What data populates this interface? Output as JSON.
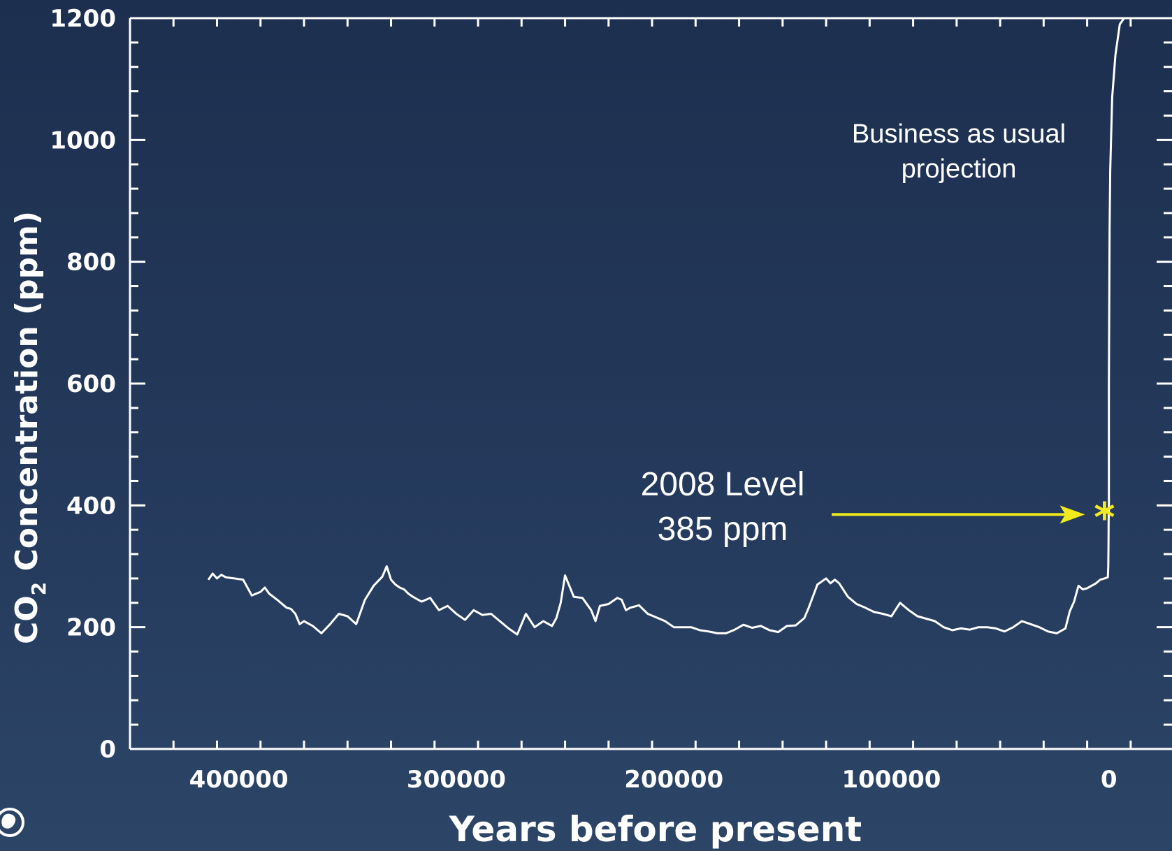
{
  "chart_data": {
    "type": "line",
    "xlabel": "Years before present",
    "ylabel": "CO",
    "ylabel_subscript": "2",
    "ylabel_suffix": " Concentration (ppm)",
    "xlim": [
      450000,
      -29000
    ],
    "ylim": [
      0,
      1200
    ],
    "x_ticks": [
      400000,
      300000,
      200000,
      100000,
      0
    ],
    "x_tick_labels": [
      "400000",
      "300000",
      "200000",
      "100000",
      "0"
    ],
    "y_ticks": [
      0,
      200,
      400,
      600,
      800,
      1000,
      1200
    ],
    "y_tick_labels": [
      "0",
      "200",
      "400",
      "600",
      "800",
      "1000",
      "1200"
    ],
    "series": [
      {
        "x": [
          414000,
          412000,
          410000,
          408000,
          406000,
          404000,
          402000,
          398000,
          394000,
          390000,
          388000,
          386000,
          382000,
          378000,
          376000,
          374000,
          372000,
          370000,
          366000,
          362000,
          358000,
          354000,
          350000,
          346000,
          342000,
          338000,
          334000,
          332000,
          330000,
          328000,
          326000,
          324000,
          322000,
          320000,
          316000,
          312000,
          308000,
          304000,
          300000,
          296000,
          292000,
          288000,
          284000,
          280000,
          276000,
          272000,
          268000,
          264000,
          260000,
          256000,
          254000,
          252000,
          250000,
          246000,
          242000,
          238000,
          236000,
          234000,
          230000,
          226000,
          224000,
          222000,
          220000,
          216000,
          212000,
          208000,
          204000,
          200000,
          196000,
          192000,
          188000,
          184000,
          180000,
          176000,
          172000,
          168000,
          164000,
          160000,
          156000,
          152000,
          148000,
          144000,
          140000,
          138000,
          134000,
          130000,
          128000,
          126000,
          124000,
          120000,
          116000,
          112000,
          108000,
          104000,
          100000,
          96000,
          92000,
          88000,
          84000,
          80000,
          76000,
          72000,
          68000,
          64000,
          60000,
          56000,
          52000,
          48000,
          44000,
          40000,
          36000,
          32000,
          28000,
          24000,
          20000,
          18000,
          16000,
          14000,
          12000,
          10000,
          8000,
          6000,
          4000,
          2000,
          500,
          300,
          200,
          100,
          0
        ],
        "values": [
          278,
          288,
          280,
          286,
          282,
          281,
          280,
          278,
          252,
          258,
          265,
          255,
          244,
          232,
          230,
          222,
          205,
          210,
          202,
          190,
          205,
          222,
          218,
          205,
          245,
          268,
          283,
          300,
          278,
          270,
          265,
          262,
          255,
          250,
          242,
          248,
          228,
          235,
          222,
          212,
          228,
          220,
          222,
          210,
          198,
          188,
          222,
          200,
          210,
          202,
          215,
          240,
          285,
          250,
          248,
          228,
          210,
          235,
          238,
          248,
          245,
          228,
          232,
          236,
          222,
          216,
          210,
          200,
          200,
          200,
          195,
          193,
          190,
          190,
          196,
          204,
          199,
          202,
          195,
          192,
          202,
          203,
          215,
          232,
          270,
          280,
          272,
          278,
          272,
          250,
          238,
          232,
          225,
          222,
          218,
          240,
          228,
          218,
          214,
          210,
          200,
          195,
          198,
          196,
          200,
          200,
          198,
          193,
          200,
          210,
          205,
          200,
          193,
          190,
          198,
          226,
          242,
          268,
          262,
          264,
          268,
          272,
          278,
          280,
          282,
          300,
          330,
          385,
          380
        ]
      },
      {
        "name": "Business as usual projection",
        "x": [
          0,
          0,
          -300,
          -600,
          -1500,
          -3000,
          -5000,
          -7000,
          -10000,
          -13000,
          -16000,
          -19000,
          -22000,
          -25000,
          -28500
        ],
        "values": [
          385,
          600,
          850,
          950,
          1070,
          1140,
          1190,
          1200,
          1200,
          1200,
          1200,
          1200,
          1200,
          1200,
          1200
        ]
      }
    ],
    "annotations": {
      "level_line1": "2008 Level",
      "level_line2": "385 ppm",
      "level_x": 2008,
      "level_value": 385,
      "projection_line1": "Business as usual",
      "projection_line2": "projection"
    },
    "colors": {
      "line": "#ffffff",
      "axis": "#ffffff",
      "highlight": "#f2ea1c",
      "text": "#ffffff"
    },
    "grid": false,
    "legend": "none"
  }
}
